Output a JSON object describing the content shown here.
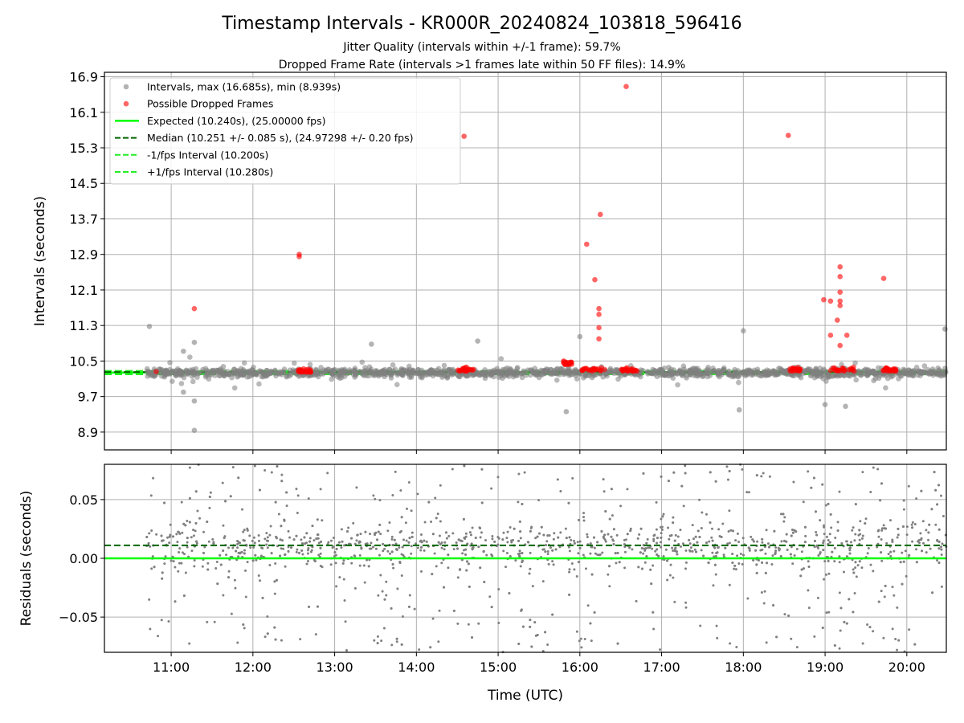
{
  "chart_data": [
    {
      "type": "scatter",
      "title": "Timestamp Intervals - KR000R_20240824_103818_596416",
      "subtitle_lines": [
        "Jitter Quality (intervals within +/-1 frame): 59.7%",
        "Dropped Frame Rate (intervals >1 frames late within 50 FF files): 14.9%"
      ],
      "xlabel": "",
      "ylabel": "Intervals (seconds)",
      "xlim": [
        "10:11",
        "20:29"
      ],
      "ylim": [
        8.5,
        17.0
      ],
      "yticks": [
        8.9,
        9.7,
        10.5,
        11.3,
        12.1,
        12.9,
        13.7,
        14.5,
        15.3,
        16.1,
        16.9
      ],
      "ytick_labels": [
        "8.9",
        "9.7",
        "10.5",
        "11.3",
        "12.1",
        "12.9",
        "13.7",
        "14.5",
        "15.3",
        "16.1",
        "16.9"
      ],
      "grid": true,
      "legend_position": "upper-left",
      "legend": [
        "Intervals, max (16.685s), min (8.939s)",
        "Possible Dropped Frames",
        "Expected (10.240s), (25.00000 fps)",
        "Median (10.251 +/- 0.085 s), (24.97298 +/- 0.20 fps)",
        "-1/fps Interval (10.200s)",
        "+1/fps Interval (10.280s)"
      ],
      "reference_lines": {
        "expected": 10.24,
        "median": 10.251,
        "minus_one_fps": 10.2,
        "plus_one_fps": 10.28
      },
      "series": [
        {
          "name": "Intervals, max (16.685s), min (8.939s)",
          "color": "#808080",
          "note": "dense band of ~2000 points around 10.24 s from 10:42 to 20:29",
          "highlights": [
            {
              "x": "10:44",
              "y": 11.28
            },
            {
              "x": "11:09",
              "y": 10.72
            },
            {
              "x": "11:17",
              "y": 10.92
            },
            {
              "x": "11:17",
              "y": 8.94
            },
            {
              "x": "11:17",
              "y": 9.6
            },
            {
              "x": "11:09",
              "y": 9.8
            },
            {
              "x": "13:27",
              "y": 10.88
            },
            {
              "x": "14:45",
              "y": 10.95
            },
            {
              "x": "15:50",
              "y": 9.36
            },
            {
              "x": "16:00",
              "y": 11.05
            },
            {
              "x": "18:00",
              "y": 11.18
            },
            {
              "x": "17:57",
              "y": 9.4
            },
            {
              "x": "19:00",
              "y": 9.52
            },
            {
              "x": "19:15",
              "y": 9.48
            },
            {
              "x": "20:28",
              "y": 11.22
            }
          ]
        },
        {
          "name": "Possible Dropped Frames",
          "color": "#ff0000",
          "points": [
            {
              "x": "10:49",
              "y": 10.26
            },
            {
              "x": "11:17",
              "y": 11.68
            },
            {
              "x": "12:34",
              "y": 12.9
            },
            {
              "x": "12:34",
              "y": 12.85
            },
            {
              "x": "14:35",
              "y": 15.56
            },
            {
              "x": "16:05",
              "y": 13.13
            },
            {
              "x": "16:11",
              "y": 12.33
            },
            {
              "x": "16:14",
              "y": 11.68
            },
            {
              "x": "16:14",
              "y": 11.55
            },
            {
              "x": "16:14",
              "y": 11.25
            },
            {
              "x": "16:14",
              "y": 11.0
            },
            {
              "x": "16:15",
              "y": 13.8
            },
            {
              "x": "16:34",
              "y": 16.68
            },
            {
              "x": "18:33",
              "y": 15.58
            },
            {
              "x": "18:59",
              "y": 11.88
            },
            {
              "x": "19:04",
              "y": 11.85
            },
            {
              "x": "19:04",
              "y": 11.08
            },
            {
              "x": "19:09",
              "y": 11.42
            },
            {
              "x": "19:11",
              "y": 12.62
            },
            {
              "x": "19:11",
              "y": 12.4
            },
            {
              "x": "19:11",
              "y": 12.05
            },
            {
              "x": "19:11",
              "y": 11.85
            },
            {
              "x": "19:11",
              "y": 11.75
            },
            {
              "x": "19:11",
              "y": 10.85
            },
            {
              "x": "19:16",
              "y": 11.08
            },
            {
              "x": "19:43",
              "y": 12.36
            }
          ],
          "clusters": [
            {
              "x_range": [
                "12:33",
                "12:43"
              ],
              "y": 10.28
            },
            {
              "x_range": [
                "14:30",
                "14:42"
              ],
              "y": 10.3
            },
            {
              "x_range": [
                "15:48",
                "15:55"
              ],
              "y": 10.45
            },
            {
              "x_range": [
                "16:00",
                "16:20"
              ],
              "y": 10.3
            },
            {
              "x_range": [
                "16:30",
                "16:42"
              ],
              "y": 10.3
            },
            {
              "x_range": [
                "18:33",
                "18:42"
              ],
              "y": 10.3
            },
            {
              "x_range": [
                "19:03",
                "19:23"
              ],
              "y": 10.3
            },
            {
              "x_range": [
                "19:42",
                "19:52"
              ],
              "y": 10.3
            }
          ]
        }
      ]
    },
    {
      "type": "scatter",
      "xlabel": "Time (UTC)",
      "ylabel": "Residuals (seconds)",
      "xlim": [
        "10:11",
        "20:29"
      ],
      "ylim": [
        -0.08,
        0.08
      ],
      "xticks": [
        "11:00",
        "12:00",
        "13:00",
        "14:00",
        "15:00",
        "16:00",
        "17:00",
        "18:00",
        "19:00",
        "20:00"
      ],
      "yticks": [
        0.05,
        0.0,
        -0.05
      ],
      "ytick_labels": [
        "0.05",
        "0.00",
        "−0.05"
      ],
      "grid": true,
      "reference_lines": {
        "expected": 0.0,
        "median": 0.011
      },
      "series": [
        {
          "name": "Residuals",
          "color": "#808080",
          "note": "~2000 residual points scattered between -0.08 and 0.08, denser near +0.01, from 10:42 to 20:29"
        }
      ]
    }
  ]
}
